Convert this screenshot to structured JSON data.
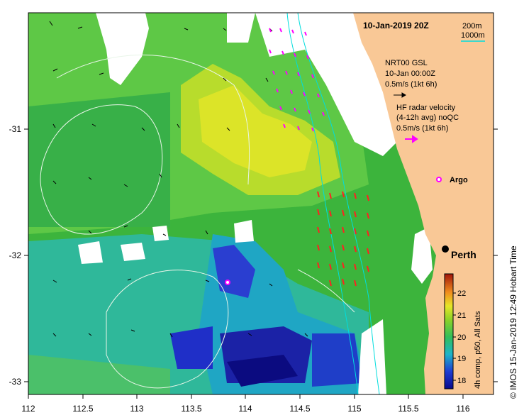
{
  "title": "10-Jan-2019 20Z",
  "bathymetry_legend": {
    "c200": "200m",
    "c1000": "1000m",
    "color": "#00dddd"
  },
  "gsl": {
    "line1": "NRT00 GSL",
    "line2": "10-Jan 00:00Z",
    "scale": "0.5m/s (1kt 6h)"
  },
  "hf": {
    "line1": "HF radar velocity",
    "line2": "(4-12h avg) noQC",
    "scale": "0.5m/s (1kt 6h)",
    "color": "#ff00ff"
  },
  "argo": {
    "label": "Argo",
    "color": "#ff00ff"
  },
  "city": {
    "label": "Perth"
  },
  "axis": {
    "x_ticks": [
      "112",
      "112.5",
      "113",
      "113.5",
      "114",
      "114.5",
      "115",
      "115.5",
      "116"
    ],
    "y_ticks": [
      "-31",
      "-32",
      "-33"
    ]
  },
  "colorbar": {
    "ticks": [
      "18",
      "19",
      "20",
      "21",
      "22"
    ],
    "min": 17.5,
    "max": 22.8,
    "label": "4h comp, p50, All Sats"
  },
  "credit": "© IMOS 15-Jan-2019 12:49 Hobart Time",
  "colors": {
    "land": "#f9c896",
    "ocean_base": "#3cb43c"
  }
}
